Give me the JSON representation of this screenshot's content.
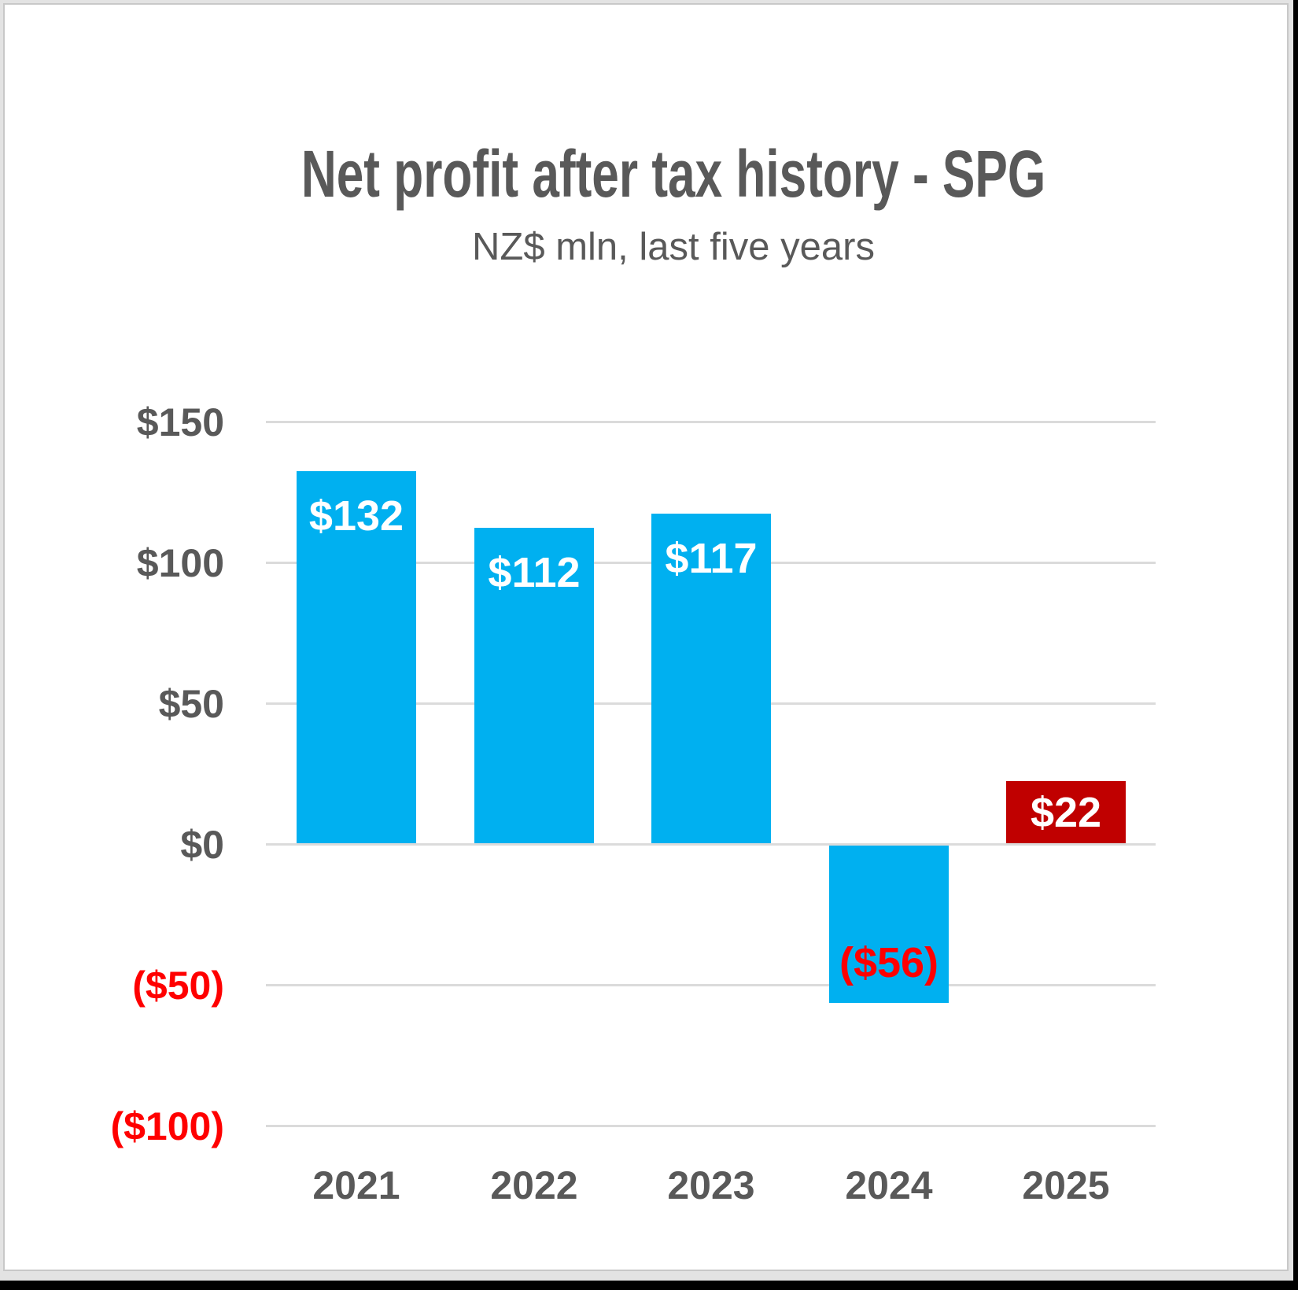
{
  "chart_data": {
    "type": "bar",
    "title": "Net profit after tax history - SPG",
    "subtitle": "NZ$ mln, last five years",
    "categories": [
      "2021",
      "2022",
      "2023",
      "2024",
      "2025"
    ],
    "values": [
      132,
      112,
      117,
      -56,
      22
    ],
    "bar_labels": [
      "$132",
      "$112",
      "$117",
      "($56)",
      "$22"
    ],
    "bar_colors": [
      "#00B0F0",
      "#00B0F0",
      "#00B0F0",
      "#00B0F0",
      "#C00000"
    ],
    "bar_label_colors": [
      "#FFFFFF",
      "#FFFFFF",
      "#FFFFFF",
      "#FF0000",
      "#FFFFFF"
    ],
    "bar_label_positions": [
      "top",
      "top",
      "top",
      "bottom",
      "middle"
    ],
    "y_ticks": [
      "$150",
      "$100",
      "$50",
      "$0",
      "($50)",
      "($100)"
    ],
    "y_tick_values": [
      150,
      100,
      50,
      0,
      -50,
      -100
    ],
    "ylim": [
      -100,
      150
    ],
    "xlabel": "",
    "ylabel": "NZ$ mln",
    "grid": true,
    "legend": false,
    "colors": {
      "positive_bar": "#00B0F0",
      "highlight_bar": "#C00000",
      "negative_text": "#FF0000",
      "axis_text": "#595959",
      "gridline": "#DBDBDB",
      "bar_label_on_bar": "#FFFFFF",
      "card_background": "#FFFFFF",
      "mat_background": "#E3E3E3"
    }
  }
}
